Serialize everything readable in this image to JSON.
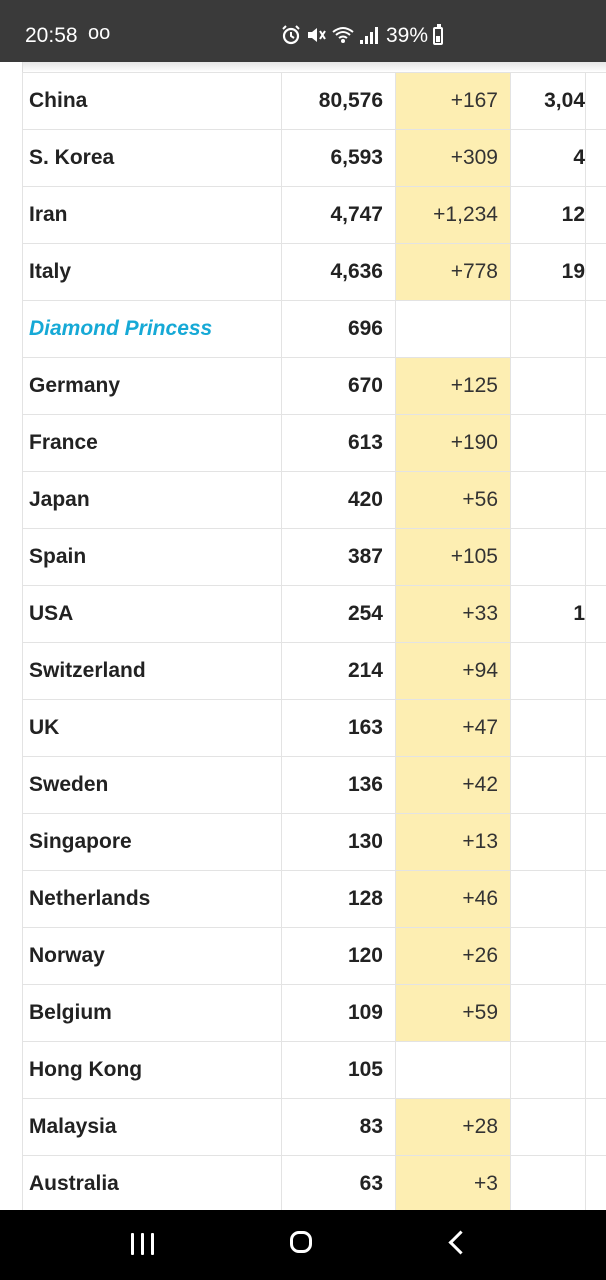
{
  "status_bar": {
    "time": "20:58",
    "voicemail_glyph": "oo",
    "battery_text": "39%"
  },
  "table": {
    "rows": [
      {
        "country": "China",
        "total": "80,576",
        "new": "+167",
        "deaths": "3,04",
        "special": false,
        "highlight": true
      },
      {
        "country": "S. Korea",
        "total": "6,593",
        "new": "+309",
        "deaths": "4",
        "special": false,
        "highlight": true
      },
      {
        "country": "Iran",
        "total": "4,747",
        "new": "+1,234",
        "deaths": "12",
        "special": false,
        "highlight": true
      },
      {
        "country": "Italy",
        "total": "4,636",
        "new": "+778",
        "deaths": "19",
        "special": false,
        "highlight": true
      },
      {
        "country": "Diamond Princess",
        "total": "696",
        "new": "",
        "deaths": "",
        "special": true,
        "highlight": false
      },
      {
        "country": "Germany",
        "total": "670",
        "new": "+125",
        "deaths": "",
        "special": false,
        "highlight": true
      },
      {
        "country": "France",
        "total": "613",
        "new": "+190",
        "deaths": "",
        "special": false,
        "highlight": true
      },
      {
        "country": "Japan",
        "total": "420",
        "new": "+56",
        "deaths": "",
        "special": false,
        "highlight": true
      },
      {
        "country": "Spain",
        "total": "387",
        "new": "+105",
        "deaths": "",
        "special": false,
        "highlight": true
      },
      {
        "country": "USA",
        "total": "254",
        "new": "+33",
        "deaths": "1",
        "special": false,
        "highlight": true
      },
      {
        "country": "Switzerland",
        "total": "214",
        "new": "+94",
        "deaths": "",
        "special": false,
        "highlight": true
      },
      {
        "country": "UK",
        "total": "163",
        "new": "+47",
        "deaths": "",
        "special": false,
        "highlight": true
      },
      {
        "country": "Sweden",
        "total": "136",
        "new": "+42",
        "deaths": "",
        "special": false,
        "highlight": true
      },
      {
        "country": "Singapore",
        "total": "130",
        "new": "+13",
        "deaths": "",
        "special": false,
        "highlight": true
      },
      {
        "country": "Netherlands",
        "total": "128",
        "new": "+46",
        "deaths": "",
        "special": false,
        "highlight": true
      },
      {
        "country": "Norway",
        "total": "120",
        "new": "+26",
        "deaths": "",
        "special": false,
        "highlight": true
      },
      {
        "country": "Belgium",
        "total": "109",
        "new": "+59",
        "deaths": "",
        "special": false,
        "highlight": true
      },
      {
        "country": "Hong Kong",
        "total": "105",
        "new": "",
        "deaths": "",
        "special": false,
        "highlight": false
      },
      {
        "country": "Malaysia",
        "total": "83",
        "new": "+28",
        "deaths": "",
        "special": false,
        "highlight": true
      },
      {
        "country": "Australia",
        "total": "63",
        "new": "+3",
        "deaths": "",
        "special": false,
        "highlight": true
      }
    ]
  },
  "colors": {
    "status_bar_bg": "#3a3a3a",
    "new_cases_highlight": "#fdeeb2",
    "special_link": "#16a9d6",
    "nav_bar_bg": "#000000"
  },
  "icons": {
    "status": [
      "alarm-icon",
      "mute-icon",
      "wifi-icon",
      "signal-icon",
      "battery-icon"
    ],
    "nav": [
      "recent-apps-icon",
      "home-icon",
      "back-icon"
    ]
  }
}
